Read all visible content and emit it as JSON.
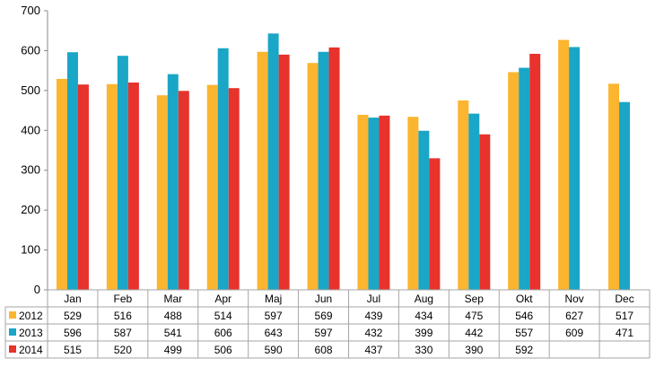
{
  "chart_data": {
    "type": "bar",
    "title": "",
    "xlabel": "",
    "ylabel": "",
    "ylim": [
      0,
      700
    ],
    "yticks": [
      0,
      100,
      200,
      300,
      400,
      500,
      600,
      700
    ],
    "grid": false,
    "legend": "data-table",
    "categories": [
      "Jan",
      "Feb",
      "Mar",
      "Apr",
      "Maj",
      "Jun",
      "Jul",
      "Aug",
      "Sep",
      "Okt",
      "Nov",
      "Dec"
    ],
    "series": [
      {
        "name": "2012",
        "color": "#FBB52F",
        "values": [
          529,
          516,
          488,
          514,
          597,
          569,
          439,
          434,
          475,
          546,
          627,
          517
        ]
      },
      {
        "name": "2013",
        "color": "#1AA6C6",
        "values": [
          596,
          587,
          541,
          606,
          643,
          597,
          432,
          399,
          442,
          557,
          609,
          471
        ]
      },
      {
        "name": "2014",
        "color": "#E8322C",
        "values": [
          515,
          520,
          499,
          506,
          590,
          608,
          437,
          330,
          390,
          592,
          null,
          null
        ]
      }
    ]
  }
}
